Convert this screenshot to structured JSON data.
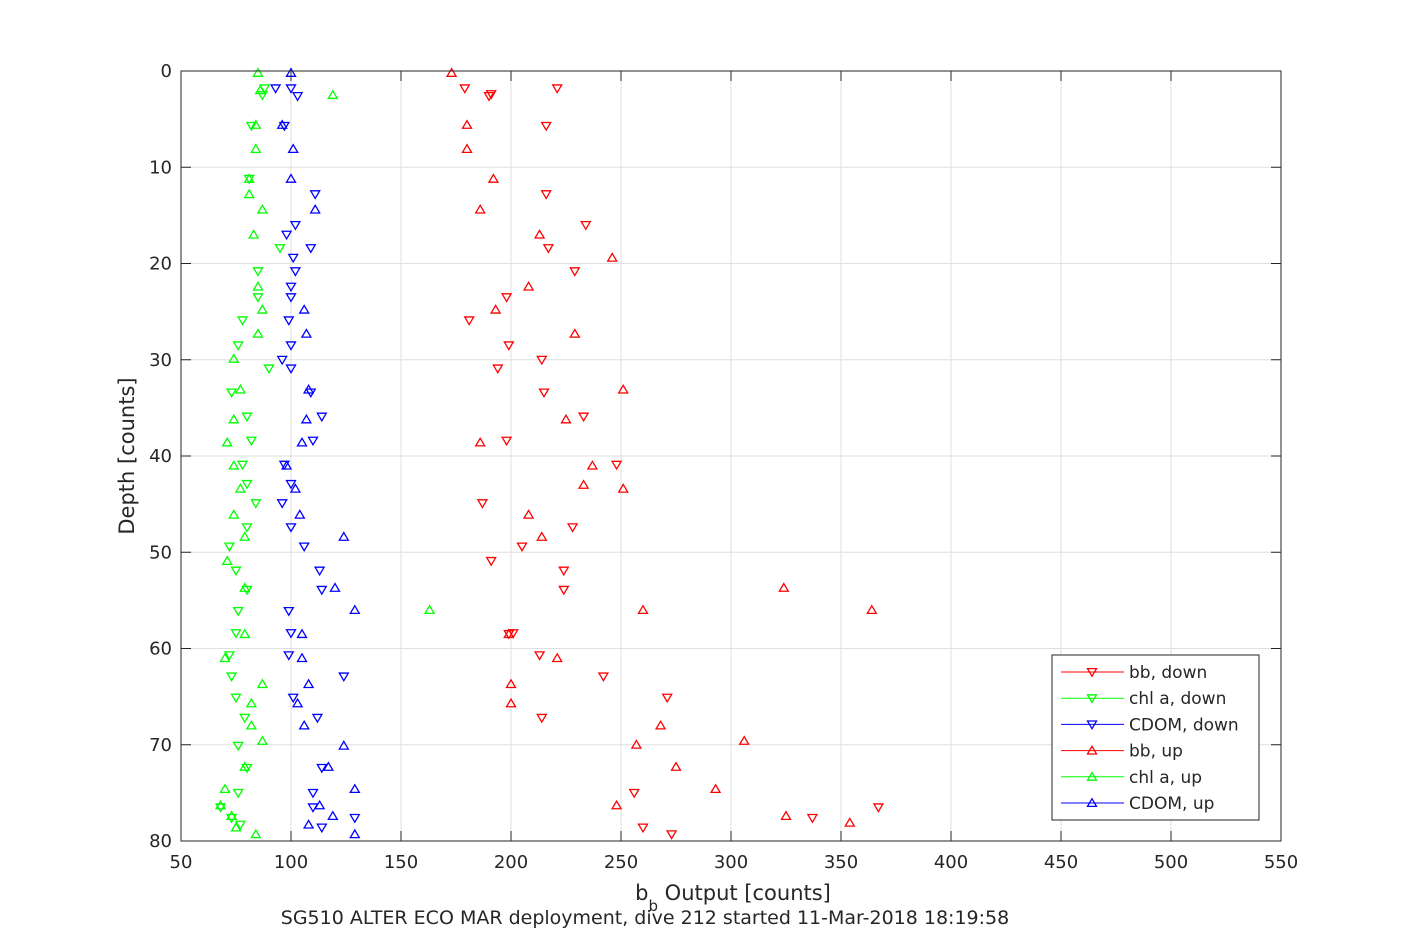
{
  "chart_data": {
    "type": "scatter",
    "xlabel": "b",
    "xlabel_sub": "b",
    "xlabel_rest": " Output [counts]",
    "ylabel": "Depth [counts]",
    "caption": "SG510 ALTER ECO MAR deployment, dive 212 started 11-Mar-2018 18:19:58",
    "xlim": [
      50,
      550
    ],
    "ylim": [
      0,
      80
    ],
    "y_reversed": true,
    "grid": true,
    "legend_position": "bottom-right",
    "xticks": [
      "50",
      "100",
      "150",
      "200",
      "250",
      "300",
      "350",
      "400",
      "450",
      "500",
      "550"
    ],
    "yticks": [
      "0",
      "10",
      "20",
      "30",
      "40",
      "50",
      "60",
      "70",
      "80"
    ],
    "series": [
      {
        "name": "bb, down",
        "color": "#ff0000",
        "marker": "triangle-down",
        "points": [
          [
            221,
            1.8
          ],
          [
            179,
            1.8
          ],
          [
            191,
            2.4
          ],
          [
            190,
            2.6
          ],
          [
            216,
            5.7
          ],
          [
            216,
            12.8
          ],
          [
            234,
            16.0
          ],
          [
            217,
            18.4
          ],
          [
            229,
            20.8
          ],
          [
            198,
            23.5
          ],
          [
            181,
            25.9
          ],
          [
            199,
            28.5
          ],
          [
            214,
            30.0
          ],
          [
            194,
            30.9
          ],
          [
            215,
            33.4
          ],
          [
            233,
            35.9
          ],
          [
            198,
            38.4
          ],
          [
            248,
            40.9
          ],
          [
            187,
            44.9
          ],
          [
            228,
            47.4
          ],
          [
            205,
            49.4
          ],
          [
            191,
            50.9
          ],
          [
            224,
            51.9
          ],
          [
            224,
            53.9
          ],
          [
            199,
            58.5
          ],
          [
            201,
            58.4
          ],
          [
            213,
            60.7
          ],
          [
            242,
            62.9
          ],
          [
            271,
            65.1
          ],
          [
            214,
            67.2
          ],
          [
            256,
            75.0
          ],
          [
            367,
            76.5
          ],
          [
            337,
            77.6
          ],
          [
            260,
            78.6
          ],
          [
            273,
            79.3
          ]
        ]
      },
      {
        "name": "chl a, down",
        "color": "#00ff00",
        "marker": "triangle-down",
        "points": [
          [
            88,
            1.8
          ],
          [
            87,
            2.5
          ],
          [
            82,
            5.7
          ],
          [
            81,
            11.2
          ],
          [
            95,
            18.4
          ],
          [
            85,
            20.8
          ],
          [
            85,
            23.5
          ],
          [
            78,
            25.9
          ],
          [
            76,
            28.5
          ],
          [
            90,
            30.9
          ],
          [
            73,
            33.4
          ],
          [
            80,
            35.9
          ],
          [
            82,
            38.4
          ],
          [
            78,
            40.9
          ],
          [
            80,
            42.9
          ],
          [
            84,
            44.9
          ],
          [
            80,
            47.4
          ],
          [
            72,
            49.4
          ],
          [
            75,
            51.9
          ],
          [
            80,
            53.9
          ],
          [
            76,
            56.1
          ],
          [
            75,
            58.4
          ],
          [
            72,
            60.7
          ],
          [
            73,
            62.9
          ],
          [
            75,
            65.1
          ],
          [
            79,
            67.2
          ],
          [
            76,
            70.1
          ],
          [
            80,
            72.4
          ],
          [
            76,
            75.0
          ],
          [
            68,
            76.5
          ],
          [
            73,
            77.6
          ],
          [
            77,
            78.3
          ]
        ]
      },
      {
        "name": "CDOM, down",
        "color": "#0000ff",
        "marker": "triangle-down",
        "points": [
          [
            93,
            1.8
          ],
          [
            100,
            1.8
          ],
          [
            103,
            2.6
          ],
          [
            97,
            5.7
          ],
          [
            111,
            12.8
          ],
          [
            102,
            16.0
          ],
          [
            98,
            17.0
          ],
          [
            109,
            18.4
          ],
          [
            101,
            19.4
          ],
          [
            102,
            20.8
          ],
          [
            100,
            22.4
          ],
          [
            100,
            23.5
          ],
          [
            99,
            25.9
          ],
          [
            100,
            28.5
          ],
          [
            96,
            30.0
          ],
          [
            100,
            30.9
          ],
          [
            109,
            33.4
          ],
          [
            114,
            35.9
          ],
          [
            110,
            38.4
          ],
          [
            97,
            40.9
          ],
          [
            100,
            42.9
          ],
          [
            96,
            44.9
          ],
          [
            100,
            47.4
          ],
          [
            106,
            49.4
          ],
          [
            113,
            51.9
          ],
          [
            114,
            53.9
          ],
          [
            99,
            56.1
          ],
          [
            100,
            58.4
          ],
          [
            99,
            60.7
          ],
          [
            124,
            62.9
          ],
          [
            101,
            65.1
          ],
          [
            112,
            67.2
          ],
          [
            114,
            72.4
          ],
          [
            110,
            75.0
          ],
          [
            110,
            76.5
          ],
          [
            129,
            77.6
          ],
          [
            114,
            78.6
          ]
        ]
      },
      {
        "name": "bb, up",
        "color": "#ff0000",
        "marker": "triangle-up",
        "points": [
          [
            173,
            0.2
          ],
          [
            180,
            5.6
          ],
          [
            180,
            8.1
          ],
          [
            192,
            11.2
          ],
          [
            186,
            14.4
          ],
          [
            213,
            17.0
          ],
          [
            246,
            19.4
          ],
          [
            208,
            22.4
          ],
          [
            193,
            24.8
          ],
          [
            229,
            27.3
          ],
          [
            251,
            33.1
          ],
          [
            225,
            36.2
          ],
          [
            186,
            38.6
          ],
          [
            237,
            41.0
          ],
          [
            233,
            43.0
          ],
          [
            251,
            43.4
          ],
          [
            208,
            46.1
          ],
          [
            214,
            48.4
          ],
          [
            324,
            53.7
          ],
          [
            260,
            56.0
          ],
          [
            364,
            56.0
          ],
          [
            199,
            58.5
          ],
          [
            221,
            61.0
          ],
          [
            200,
            63.7
          ],
          [
            200,
            65.7
          ],
          [
            268,
            68.0
          ],
          [
            257,
            70.0
          ],
          [
            306,
            69.6
          ],
          [
            275,
            72.3
          ],
          [
            293,
            74.6
          ],
          [
            248,
            76.3
          ],
          [
            325,
            77.4
          ],
          [
            354,
            78.1
          ]
        ]
      },
      {
        "name": "chl a, up",
        "color": "#00ff00",
        "marker": "triangle-up",
        "points": [
          [
            85,
            0.2
          ],
          [
            86,
            2.0
          ],
          [
            119,
            2.5
          ],
          [
            84,
            5.6
          ],
          [
            84,
            8.1
          ],
          [
            81,
            11.2
          ],
          [
            81,
            12.8
          ],
          [
            87,
            14.4
          ],
          [
            83,
            17.0
          ],
          [
            85,
            22.4
          ],
          [
            87,
            24.8
          ],
          [
            85,
            27.3
          ],
          [
            74,
            29.9
          ],
          [
            77,
            33.1
          ],
          [
            74,
            36.2
          ],
          [
            71,
            38.6
          ],
          [
            74,
            41.0
          ],
          [
            77,
            43.4
          ],
          [
            74,
            46.1
          ],
          [
            79,
            48.4
          ],
          [
            71,
            50.9
          ],
          [
            79,
            53.7
          ],
          [
            163,
            56.0
          ],
          [
            79,
            58.5
          ],
          [
            70,
            61.0
          ],
          [
            87,
            63.7
          ],
          [
            82,
            65.7
          ],
          [
            82,
            68.0
          ],
          [
            87,
            69.6
          ],
          [
            79,
            72.3
          ],
          [
            70,
            74.6
          ],
          [
            68,
            76.3
          ],
          [
            73,
            77.4
          ],
          [
            75,
            78.6
          ],
          [
            84,
            79.3
          ]
        ]
      },
      {
        "name": "CDOM, up",
        "color": "#0000ff",
        "marker": "triangle-up",
        "points": [
          [
            100,
            0.2
          ],
          [
            96,
            5.6
          ],
          [
            101,
            8.1
          ],
          [
            100,
            11.2
          ],
          [
            111,
            14.4
          ],
          [
            106,
            24.8
          ],
          [
            107,
            27.3
          ],
          [
            108,
            33.1
          ],
          [
            107,
            36.2
          ],
          [
            105,
            38.6
          ],
          [
            98,
            41.0
          ],
          [
            102,
            43.4
          ],
          [
            104,
            46.1
          ],
          [
            124,
            48.4
          ],
          [
            120,
            53.7
          ],
          [
            129,
            56.0
          ],
          [
            105,
            58.5
          ],
          [
            105,
            61.0
          ],
          [
            108,
            63.7
          ],
          [
            103,
            65.7
          ],
          [
            106,
            68.0
          ],
          [
            124,
            70.1
          ],
          [
            117,
            72.3
          ],
          [
            129,
            74.6
          ],
          [
            113,
            76.3
          ],
          [
            119,
            77.4
          ],
          [
            108,
            78.3
          ],
          [
            129,
            79.3
          ]
        ]
      }
    ]
  }
}
